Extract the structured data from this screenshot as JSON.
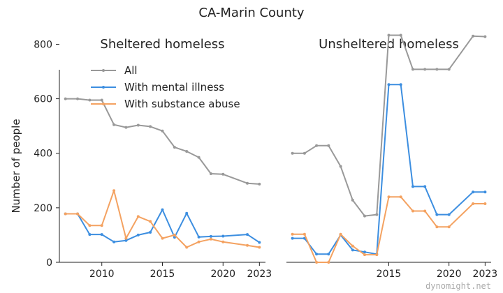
{
  "figure_title": "CA-Marin County",
  "watermark": "dynomight.net",
  "chart_data": [
    {
      "type": "line",
      "title": "Sheltered homeless",
      "xlabel": "",
      "ylabel": "Number of people",
      "ylim": [
        0,
        860
      ],
      "xlim": [
        2006.5,
        2023.5
      ],
      "xticks": [
        "2010",
        "2015",
        "2020",
        "2023"
      ],
      "yticks": [
        "0",
        "200",
        "400",
        "600",
        "800"
      ],
      "grid": false,
      "legend": "top-left",
      "series": [
        {
          "name": "All",
          "color": "#999999",
          "x": [
            2007,
            2008,
            2009,
            2010,
            2011,
            2012,
            2013,
            2014,
            2015,
            2016,
            2017,
            2018,
            2019,
            2020,
            2022,
            2023
          ],
          "y": [
            600,
            600,
            595,
            595,
            505,
            495,
            503,
            498,
            482,
            422,
            407,
            385,
            325,
            323,
            290,
            287
          ]
        },
        {
          "name": "With mental illness",
          "color": "#3c8ee0",
          "x": [
            2007,
            2008,
            2009,
            2010,
            2011,
            2012,
            2013,
            2014,
            2015,
            2016,
            2017,
            2018,
            2019,
            2020,
            2022,
            2023
          ],
          "y": [
            178,
            178,
            102,
            102,
            75,
            80,
            100,
            110,
            193,
            92,
            180,
            93,
            95,
            96,
            102,
            73
          ]
        },
        {
          "name": "With substance abuse",
          "color": "#f4a261",
          "x": [
            2007,
            2008,
            2009,
            2010,
            2011,
            2012,
            2013,
            2014,
            2015,
            2016,
            2017,
            2018,
            2019,
            2020,
            2022,
            2023
          ],
          "y": [
            178,
            178,
            135,
            135,
            263,
            88,
            168,
            150,
            88,
            100,
            55,
            75,
            85,
            75,
            62,
            55
          ]
        }
      ]
    },
    {
      "type": "line",
      "title": "Unsheltered homeless",
      "xlabel": "",
      "ylabel": "",
      "ylim": [
        0,
        860
      ],
      "xlim": [
        2006.5,
        2023.5
      ],
      "xticks": [
        "2015",
        "2020",
        "2023"
      ],
      "yticks": [],
      "grid": false,
      "series": [
        {
          "name": "All",
          "color": "#999999",
          "x": [
            2007,
            2008,
            2009,
            2010,
            2011,
            2012,
            2013,
            2014,
            2015,
            2016,
            2017,
            2018,
            2019,
            2020,
            2022,
            2023
          ],
          "y": [
            400,
            400,
            428,
            428,
            352,
            228,
            170,
            175,
            833,
            833,
            708,
            708,
            708,
            708,
            830,
            828
          ]
        },
        {
          "name": "With mental illness",
          "color": "#3c8ee0",
          "x": [
            2007,
            2008,
            2009,
            2010,
            2011,
            2012,
            2013,
            2014,
            2015,
            2016,
            2017,
            2018,
            2019,
            2020,
            2022,
            2023
          ],
          "y": [
            88,
            88,
            30,
            30,
            100,
            45,
            38,
            30,
            652,
            652,
            278,
            278,
            175,
            175,
            258,
            258
          ]
        },
        {
          "name": "With substance abuse",
          "color": "#f4a261",
          "x": [
            2007,
            2008,
            2009,
            2010,
            2011,
            2012,
            2013,
            2014,
            2015,
            2016,
            2017,
            2018,
            2019,
            2020,
            2022,
            2023
          ],
          "y": [
            103,
            103,
            0,
            0,
            103,
            60,
            28,
            28,
            240,
            240,
            188,
            188,
            130,
            130,
            215,
            215
          ]
        }
      ]
    }
  ]
}
